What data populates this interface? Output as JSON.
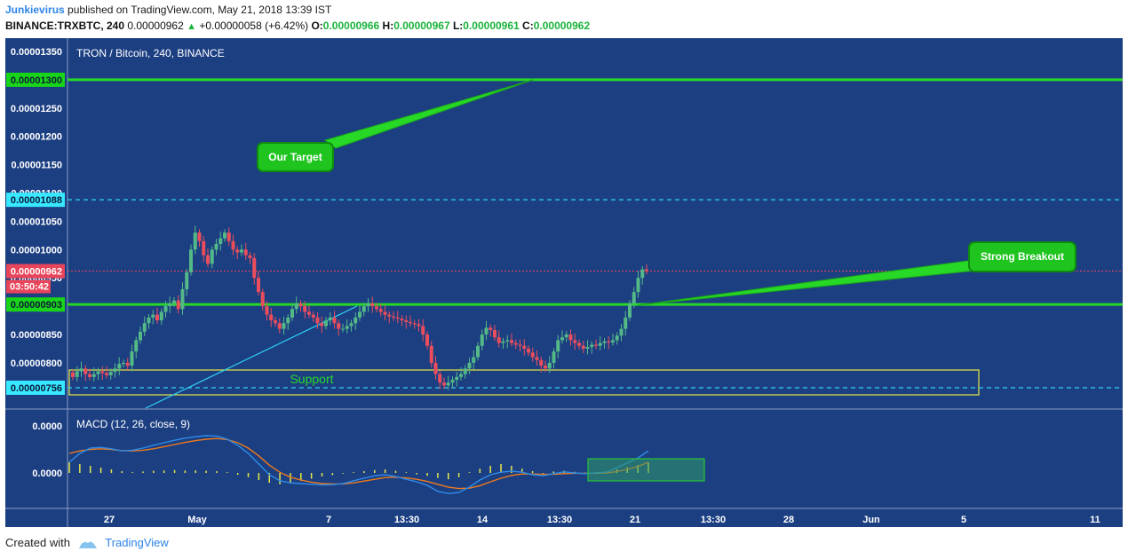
{
  "header": {
    "author": "Junkievirus",
    "published_text": "published on TradingView.com, May 21, 2018 13:39 IST",
    "symbol": "BINANCE:TRXBTC, 240",
    "last": "0.00000962",
    "change": "+0.00000058 (+6.42%)",
    "o_label": "O:",
    "o_value": "0.00000966",
    "h_label": "H:",
    "h_value": "0.00000967",
    "l_label": "L:",
    "l_value": "0.00000961",
    "c_label": "C:",
    "c_value": "0.00000962"
  },
  "footer": {
    "created_with": "Created with",
    "brand": "TradingView"
  },
  "colors": {
    "background": "#1c3f82",
    "price_axis_bg": "#1c3f82",
    "up_candle": "#53b987",
    "down_candle": "#eb4d5c",
    "level_line": "#27d827",
    "cyan_line": "#2fd0f5",
    "label_green": "#19d519",
    "label_cyan": "#37e8ff",
    "label_red": "#e8445a",
    "macd_line": "#2e8be8",
    "signal_line": "#ef7a1a",
    "histogram": "#e6e84a",
    "support_box": "#e8e840",
    "support_text": "#27d827"
  },
  "chart_data": [
    {
      "type": "candlestick",
      "title": "TRON / Bitcoin, 240, BINANCE",
      "ylim": [
        7.5e-06,
        1.36e-05
      ],
      "y_ticks": [
        "0.00001350",
        "0.00001300",
        "0.00001250",
        "0.00001200",
        "0.00001150",
        "0.00001100",
        "0.00001050",
        "0.00001000",
        "0.00000950",
        "0.00000900",
        "0.00000850",
        "0.00000800",
        "0.00000750"
      ],
      "x_ticks": [
        "27",
        "May",
        "7",
        "13:30",
        "14",
        "13:30",
        "21",
        "13:30",
        "28",
        "Jun",
        "5",
        "11"
      ],
      "closes": [
        775,
        785,
        790,
        780,
        775,
        780,
        785,
        782,
        778,
        784,
        790,
        798,
        800,
        795,
        820,
        840,
        855,
        870,
        880,
        885,
        875,
        890,
        900,
        905,
        910,
        895,
        930,
        960,
        1000,
        1030,
        1015,
        990,
        975,
        1000,
        1010,
        1020,
        1030,
        1015,
        1000,
        995,
        1000,
        990,
        985,
        950,
        925,
        900,
        885,
        875,
        870,
        860,
        870,
        880,
        895,
        905,
        900,
        890,
        885,
        880,
        870,
        865,
        875,
        880,
        870,
        860,
        860,
        865,
        870,
        880,
        890,
        900,
        905,
        900,
        895,
        890,
        885,
        882,
        880,
        878,
        875,
        872,
        870,
        868,
        865,
        850,
        830,
        800,
        780,
        765,
        760,
        765,
        770,
        775,
        780,
        790,
        800,
        810,
        830,
        850,
        862,
        858,
        845,
        835,
        838,
        840,
        835,
        832,
        830,
        825,
        818,
        810,
        805,
        795,
        790,
        800,
        820,
        840,
        845,
        850,
        840,
        835,
        830,
        825,
        828,
        832,
        830,
        835,
        838,
        836,
        840,
        848,
        860,
        880,
        905,
        925,
        950,
        965,
        962
      ],
      "levels": [
        {
          "price": 1.3e-05,
          "label": "0.00001300",
          "style": "solid",
          "color": "green"
        },
        {
          "price": 1.088e-05,
          "label": "0.00001088",
          "style": "dashed",
          "color": "cyan"
        },
        {
          "price": 9.62e-06,
          "label": "0.00000962",
          "style": "dotted",
          "color": "red",
          "countdown": "03:50:42"
        },
        {
          "price": 9.03e-06,
          "label": "0.00000903",
          "style": "solid",
          "color": "green"
        },
        {
          "price": 7.56e-06,
          "label": "0.00000756",
          "style": "dashed",
          "color": "cyan"
        }
      ],
      "annotations": [
        {
          "text": "Our Target"
        },
        {
          "text": "Strong Breakout"
        },
        {
          "text": "Support"
        }
      ]
    },
    {
      "type": "line",
      "title": "MACD (12, 26, close, 9)",
      "y_ticks": [
        "0.0000",
        "0.0000"
      ],
      "series": [
        {
          "name": "MACD",
          "values": [
            0.3,
            0.55,
            0.7,
            0.72,
            0.68,
            0.62,
            0.64,
            0.7,
            0.78,
            0.85,
            0.92,
            0.98,
            1.02,
            1.05,
            1.04,
            0.95,
            0.78,
            0.55,
            0.25,
            -0.05,
            -0.22,
            -0.28,
            -0.3,
            -0.32,
            -0.34,
            -0.33,
            -0.3,
            -0.22,
            -0.15,
            -0.08,
            -0.05,
            -0.1,
            -0.18,
            -0.25,
            -0.35,
            -0.52,
            -0.58,
            -0.55,
            -0.4,
            -0.2,
            -0.05,
            0.02,
            0.05,
            0.02,
            -0.05,
            -0.08,
            -0.02,
            0.03,
            0.0,
            -0.02,
            0.0,
            0.02,
            0.15,
            0.28,
            0.42,
            0.62
          ]
        },
        {
          "name": "Signal",
          "values": [
            0.55,
            0.62,
            0.66,
            0.68,
            0.66,
            0.63,
            0.62,
            0.64,
            0.68,
            0.74,
            0.8,
            0.86,
            0.91,
            0.95,
            0.97,
            0.94,
            0.85,
            0.7,
            0.48,
            0.22,
            0.02,
            -0.12,
            -0.2,
            -0.26,
            -0.3,
            -0.31,
            -0.31,
            -0.28,
            -0.23,
            -0.18,
            -0.13,
            -0.12,
            -0.14,
            -0.18,
            -0.24,
            -0.32,
            -0.4,
            -0.44,
            -0.43,
            -0.36,
            -0.25,
            -0.15,
            -0.07,
            -0.03,
            -0.03,
            -0.04,
            -0.04,
            -0.02,
            -0.01,
            -0.01,
            -0.01,
            0.0,
            0.04,
            0.1,
            0.18,
            0.3
          ]
        },
        {
          "name": "Histogram",
          "values": [
            0.3,
            0.25,
            0.2,
            0.15,
            0.1,
            0.05,
            0.02,
            0.04,
            0.06,
            0.07,
            0.08,
            0.07,
            0.07,
            0.06,
            0.05,
            0.02,
            -0.05,
            -0.12,
            -0.2,
            -0.28,
            -0.32,
            -0.28,
            -0.22,
            -0.16,
            -0.1,
            -0.06,
            -0.02,
            0.02,
            0.05,
            0.08,
            0.1,
            0.06,
            0.02,
            -0.04,
            -0.08,
            -0.14,
            -0.18,
            -0.12,
            0.02,
            0.12,
            0.2,
            0.25,
            0.2,
            0.12,
            0.05,
            -0.02,
            0.04,
            0.06,
            0.03,
            0.01,
            0.02,
            0.04,
            0.1,
            0.16,
            0.22,
            0.3
          ]
        }
      ]
    }
  ]
}
